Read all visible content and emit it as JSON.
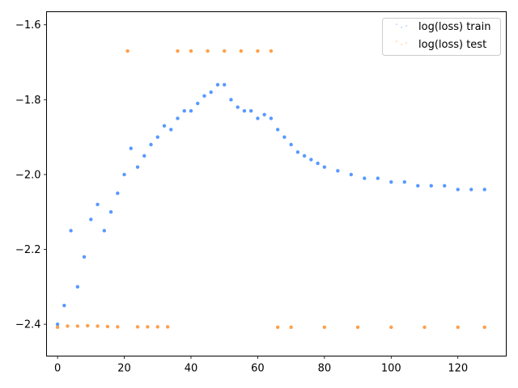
{
  "chart_data": {
    "type": "scatter",
    "title": "",
    "xlabel": "",
    "ylabel": "",
    "xlim": [
      -3.3,
      134.5
    ],
    "ylim": [
      -2.485,
      -1.565
    ],
    "xticks": [
      0,
      20,
      40,
      60,
      80,
      100,
      120
    ],
    "yticks": [
      -2.4,
      -2.2,
      -2.0,
      -1.8,
      -1.6
    ],
    "ytick_labels": [
      "−2.4",
      "−2.2",
      "−2.0",
      "−1.8",
      "−1.6"
    ],
    "grid": false,
    "legend_position": "top-right",
    "series": [
      {
        "name": "log(loss) train",
        "color": "#1f77ff",
        "x": [
          0,
          2,
          4,
          6,
          8,
          10,
          12,
          14,
          16,
          18,
          20,
          22,
          24,
          26,
          28,
          30,
          32,
          34,
          36,
          38,
          40,
          42,
          44,
          46,
          48,
          50,
          52,
          54,
          56,
          58,
          60,
          62,
          64,
          66,
          68,
          70,
          72,
          74,
          76,
          78,
          80,
          84,
          88,
          92,
          96,
          100,
          104,
          108,
          112,
          116,
          120,
          124,
          128
        ],
        "y": [
          -2.4,
          -2.35,
          -2.15,
          -2.3,
          -2.22,
          -2.12,
          -2.08,
          -2.15,
          -2.1,
          -2.05,
          -2.0,
          -1.93,
          -1.98,
          -1.95,
          -1.92,
          -1.9,
          -1.87,
          -1.88,
          -1.85,
          -1.83,
          -1.83,
          -1.81,
          -1.79,
          -1.78,
          -1.76,
          -1.76,
          -1.8,
          -1.82,
          -1.83,
          -1.83,
          -1.85,
          -1.84,
          -1.85,
          -1.88,
          -1.9,
          -1.92,
          -1.94,
          -1.95,
          -1.96,
          -1.97,
          -1.98,
          -1.99,
          -2.0,
          -2.01,
          -2.01,
          -2.02,
          -2.02,
          -2.03,
          -2.03,
          -2.03,
          -2.04,
          -2.04,
          -2.04
        ]
      },
      {
        "name": "log(loss) test",
        "color": "#ff7f0e",
        "x": [
          0,
          3,
          6,
          9,
          12,
          15,
          18,
          21,
          24,
          27,
          30,
          33,
          36,
          40,
          45,
          50,
          55,
          60,
          64,
          66,
          70,
          80,
          90,
          100,
          110,
          120,
          128
        ],
        "y": [
          -2.408,
          -2.405,
          -2.405,
          -2.404,
          -2.405,
          -2.406,
          -2.407,
          -1.67,
          -2.407,
          -2.407,
          -2.407,
          -2.407,
          -1.67,
          -1.67,
          -1.67,
          -1.67,
          -1.67,
          -1.67,
          -1.67,
          -2.408,
          -2.408,
          -2.408,
          -2.408,
          -2.408,
          -2.408,
          -2.408,
          -2.408
        ]
      }
    ]
  }
}
